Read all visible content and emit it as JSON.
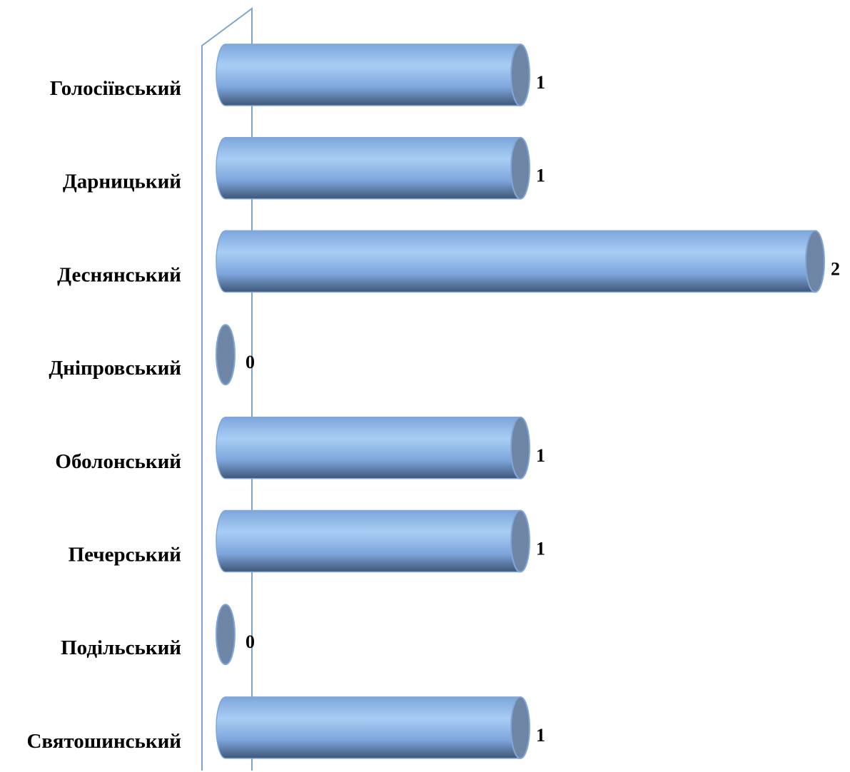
{
  "chart_data": {
    "type": "bar",
    "orientation": "horizontal",
    "style": "3d-cylinder",
    "title": "",
    "xlabel": "",
    "ylabel": "",
    "categories": [
      "Голосіївський",
      "Дарницький",
      "Деснянський",
      "Дніпровський",
      "Оболонський",
      "Печерський",
      "Подільський",
      "Святошинський"
    ],
    "values": [
      1,
      1,
      2,
      0,
      1,
      1,
      0,
      1
    ],
    "data_labels": [
      "1",
      "1",
      "2",
      "0",
      "1",
      "1",
      "0",
      "1"
    ],
    "xlim": [
      0,
      2
    ],
    "grid": false,
    "legend": "none",
    "colors": {
      "bar_light": "#a8cdf4",
      "bar_mid": "#7ea6dc",
      "bar_dark": "#3f5677",
      "bar_cap": "#6f85a5",
      "bar_outline": "#7fa7d9",
      "axis_wall": "#7da6cf"
    }
  }
}
